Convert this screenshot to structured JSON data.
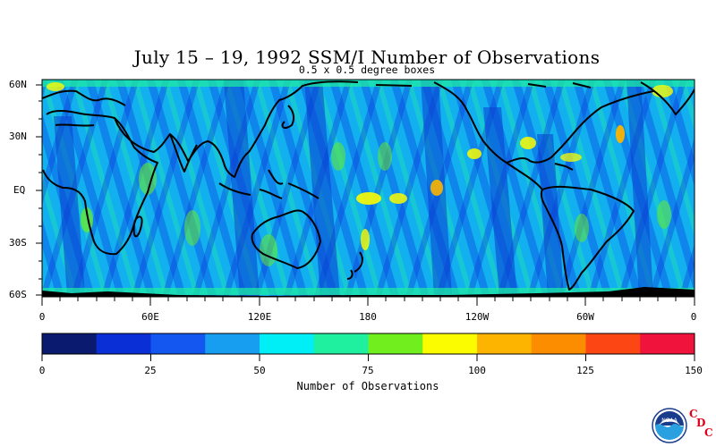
{
  "title": "July 15 – 19, 1992 SSM/I Number of Observations",
  "subtitle": "0.5 x 0.5 degree boxes",
  "map": {
    "lat_labels": [
      "60N",
      "30N",
      "EQ",
      "30S",
      "60S"
    ],
    "lon_labels": [
      "0",
      "60E",
      "120E",
      "180",
      "120W",
      "60W",
      "0"
    ]
  },
  "colorbar": {
    "title": "Number of Observations",
    "tick_labels": [
      "0",
      "25",
      "50",
      "75",
      "100",
      "125",
      "150"
    ],
    "colors": [
      "#0a1a6e",
      "#0a2fd6",
      "#1457f0",
      "#189ef0",
      "#00eef6",
      "#1ef0a0",
      "#70ee1e",
      "#fcfc00",
      "#fcb400",
      "#fc8c00",
      "#fc4614",
      "#f0143c"
    ]
  },
  "logo": {
    "badge": "NOAA",
    "letters": [
      "C",
      "D",
      "C"
    ]
  }
}
